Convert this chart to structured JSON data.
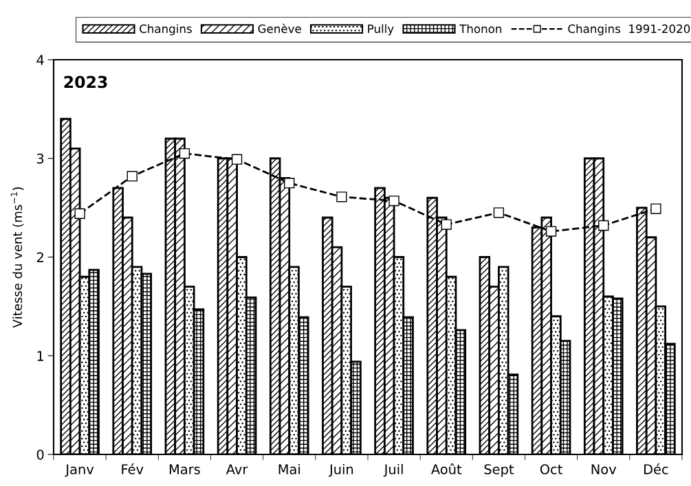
{
  "chart_data": {
    "type": "bar",
    "ylabel": "Vitesse du vent (ms$^{−1}$)",
    "annotations": [
      "2023"
    ],
    "categories": [
      "Janv",
      "Fév",
      "Mars",
      "Avr",
      "Mai",
      "Juin",
      "Juil",
      "Août",
      "Sept",
      "Oct",
      "Nov",
      "Déc"
    ],
    "series": [
      {
        "name": "Changins",
        "color": "#000000",
        "values": [
          3.4,
          2.7,
          3.2,
          3.0,
          3.0,
          2.4,
          2.7,
          2.6,
          2.0,
          2.3,
          3.0,
          2.5
        ]
      },
      {
        "name": "Genève",
        "color": "#000000",
        "values": [
          3.1,
          2.4,
          3.2,
          3.0,
          2.8,
          2.1,
          2.6,
          2.4,
          1.7,
          2.4,
          3.0,
          2.2
        ]
      },
      {
        "name": "Pully",
        "color": "#000000",
        "values": [
          1.8,
          1.9,
          1.7,
          2.0,
          1.9,
          1.7,
          2.0,
          1.8,
          1.9,
          1.4,
          1.6,
          1.5
        ]
      },
      {
        "name": "Thonon",
        "color": "#000000",
        "values": [
          1.87,
          1.83,
          1.47,
          1.59,
          1.39,
          0.94,
          1.39,
          1.26,
          0.81,
          1.15,
          1.58,
          1.12
        ]
      },
      {
        "name": "Changins  1991-2020",
        "type": "line",
        "color": "#000000",
        "marker": "square",
        "line_style": "dashed",
        "values": [
          2.44,
          2.82,
          3.05,
          2.99,
          2.75,
          2.61,
          2.57,
          2.33,
          2.45,
          2.26,
          2.32,
          2.49
        ]
      }
    ],
    "ylim": [
      0,
      4
    ],
    "yticks": [
      0,
      1,
      2,
      3,
      4
    ],
    "grid": false,
    "legend": "top"
  }
}
